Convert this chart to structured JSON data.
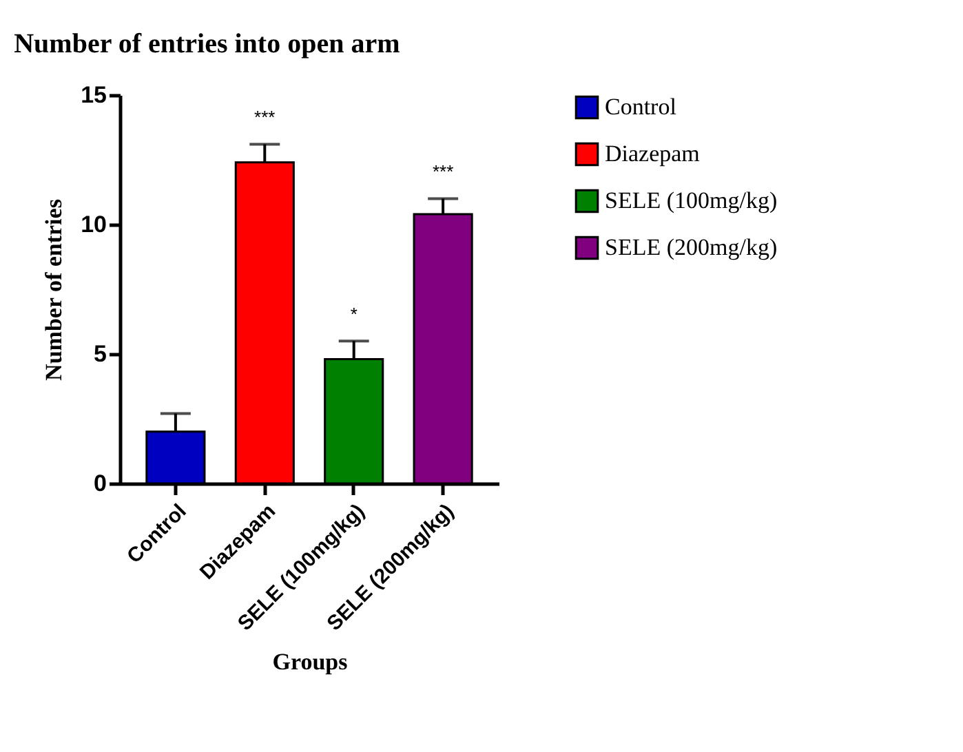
{
  "chart_data": {
    "type": "bar",
    "title": "Number of entries into open arm",
    "xlabel": "Groups",
    "ylabel": "Number of entries",
    "categories": [
      "Control",
      "Diazepam",
      "SELE (100mg/kg)",
      "SELE (200mg/kg)"
    ],
    "series": [
      {
        "name": "Control",
        "color": "#0000c0",
        "values": [
          2.0,
          null,
          null,
          null
        ],
        "errors": [
          [
            2.0,
            2.7
          ],
          null,
          null,
          null
        ]
      },
      {
        "name": "Diazepam",
        "color": "#ff0000",
        "values": [
          null,
          12.4,
          null,
          null
        ],
        "errors": [
          null,
          [
            12.4,
            13.1
          ],
          null,
          null
        ]
      },
      {
        "name": "SELE (100mg/kg)",
        "color": "#008000",
        "values": [
          null,
          null,
          4.8,
          null
        ],
        "errors": [
          null,
          null,
          [
            4.8,
            5.5
          ],
          null
        ]
      },
      {
        "name": "SELE (200mg/kg)",
        "color": "#800080",
        "values": [
          null,
          null,
          null,
          10.4
        ],
        "errors": [
          null,
          null,
          null,
          [
            10.4,
            11.0
          ]
        ]
      }
    ],
    "ylim": [
      0,
      15
    ],
    "yticks": [
      0,
      5,
      10,
      15
    ],
    "grid": false,
    "legend": "top right",
    "annotations": [
      {
        "text": "***",
        "x": "Diazepam",
        "y": 13.1
      },
      {
        "text": "*",
        "x": "SELE (100mg/kg)",
        "y": 5.5
      },
      {
        "text": "***",
        "x": "SELE (200mg/kg)",
        "y": 11.0
      }
    ]
  }
}
